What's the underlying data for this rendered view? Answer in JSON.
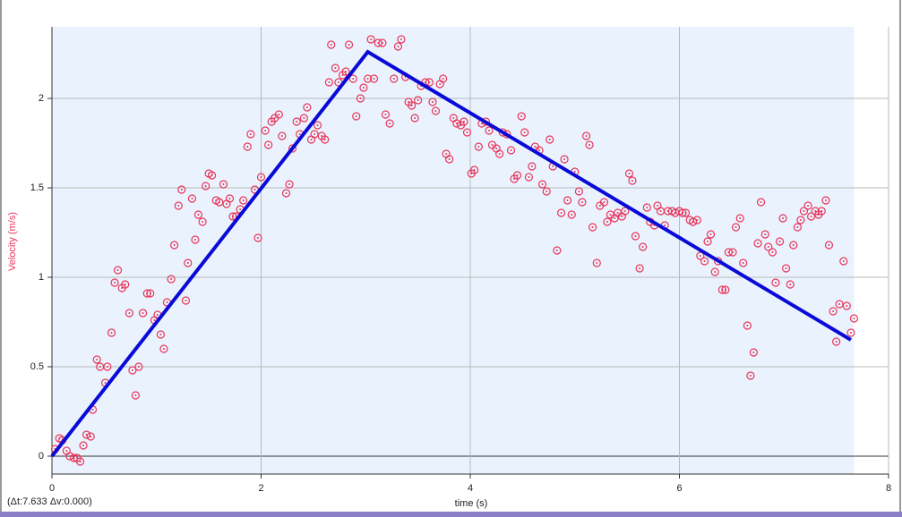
{
  "chart_data": {
    "type": "scatter",
    "x_label": "time (s)",
    "y_label": "Velocity (m/s)",
    "annotation": "(Δt:7.633 Δv:0.000)",
    "xlim": [
      0,
      8
    ],
    "ylim": [
      -0.1,
      2.4
    ],
    "xticks": [
      0,
      2,
      4,
      6,
      8
    ],
    "yticks": [
      0,
      0.5,
      1,
      1.5,
      2
    ],
    "grid": true,
    "points": {
      "color": "#e8345a",
      "x": [
        0.03,
        0.07,
        0.1,
        0.14,
        0.17,
        0.21,
        0.24,
        0.27,
        0.3,
        0.33,
        0.37,
        0.39,
        0.43,
        0.46,
        0.51,
        0.53,
        0.57,
        0.6,
        0.63,
        0.67,
        0.7,
        0.74,
        0.77,
        0.8,
        0.83,
        0.87,
        0.91,
        0.94,
        0.98,
        1.01,
        1.04,
        1.07,
        1.1,
        1.14,
        1.17,
        1.21,
        1.24,
        1.28,
        1.3,
        1.34,
        1.37,
        1.4,
        1.44,
        1.47,
        1.5,
        1.53,
        1.57,
        1.6,
        1.64,
        1.67,
        1.7,
        1.73,
        1.76,
        1.8,
        1.83,
        1.87,
        1.9,
        1.94,
        1.97,
        2.0,
        2.04,
        2.07,
        2.1,
        2.13,
        2.17,
        2.2,
        2.24,
        2.27,
        2.3,
        2.34,
        2.37,
        2.41,
        2.44,
        2.48,
        2.51,
        2.54,
        2.58,
        2.61,
        2.65,
        2.67,
        2.71,
        2.74,
        2.78,
        2.81,
        2.84,
        2.88,
        2.91,
        2.95,
        2.98,
        3.02,
        3.05,
        3.08,
        3.12,
        3.16,
        3.19,
        3.23,
        3.27,
        3.31,
        3.34,
        3.38,
        3.41,
        3.44,
        3.47,
        3.5,
        3.53,
        3.57,
        3.61,
        3.64,
        3.67,
        3.71,
        3.74,
        3.77,
        3.8,
        3.84,
        3.87,
        3.91,
        3.94,
        3.97,
        4.01,
        4.04,
        4.08,
        4.11,
        4.15,
        4.18,
        4.21,
        4.25,
        4.28,
        4.31,
        4.35,
        4.39,
        4.42,
        4.45,
        4.49,
        4.52,
        4.56,
        4.59,
        4.62,
        4.66,
        4.69,
        4.73,
        4.76,
        4.79,
        4.83,
        4.87,
        4.9,
        4.93,
        4.97,
        5.0,
        5.04,
        5.07,
        5.11,
        5.14,
        5.17,
        5.21,
        5.24,
        5.28,
        5.31,
        5.34,
        5.38,
        5.41,
        5.45,
        5.48,
        5.52,
        5.55,
        5.58,
        5.62,
        5.65,
        5.69,
        5.72,
        5.76,
        5.79,
        5.82,
        5.86,
        5.89,
        5.93,
        5.96,
        6.0,
        6.03,
        6.06,
        6.1,
        6.13,
        6.17,
        6.2,
        6.24,
        6.27,
        6.3,
        6.34,
        6.37,
        6.41,
        6.44,
        6.47,
        6.51,
        6.54,
        6.58,
        6.61,
        6.65,
        6.68,
        6.71,
        6.75,
        6.78,
        6.82,
        6.85,
        6.89,
        6.92,
        6.96,
        6.99,
        7.02,
        7.06,
        7.09,
        7.13,
        7.16,
        7.19,
        7.23,
        7.26,
        7.3,
        7.33,
        7.36,
        7.4,
        7.43,
        7.47,
        7.5,
        7.53,
        7.57,
        7.6,
        7.64,
        7.67
      ],
      "values": [
        0.04,
        0.1,
        0.09,
        0.03,
        0.0,
        -0.01,
        -0.01,
        -0.03,
        0.06,
        0.12,
        0.11,
        0.26,
        0.54,
        0.5,
        0.41,
        0.5,
        0.69,
        0.97,
        1.04,
        0.94,
        0.96,
        0.8,
        0.48,
        0.34,
        0.5,
        0.8,
        0.91,
        0.91,
        0.76,
        0.79,
        0.68,
        0.6,
        0.86,
        0.99,
        1.18,
        1.4,
        1.49,
        0.87,
        1.08,
        1.44,
        1.21,
        1.35,
        1.31,
        1.51,
        1.58,
        1.57,
        1.43,
        1.42,
        1.52,
        1.41,
        1.44,
        1.34,
        1.34,
        1.38,
        1.43,
        1.73,
        1.8,
        1.49,
        1.22,
        1.56,
        1.82,
        1.74,
        1.87,
        1.89,
        1.91,
        1.79,
        1.47,
        1.52,
        1.72,
        1.87,
        1.8,
        1.89,
        1.95,
        1.77,
        1.8,
        1.85,
        1.79,
        1.77,
        2.09,
        2.3,
        2.17,
        2.09,
        2.13,
        2.15,
        2.3,
        2.11,
        1.9,
        2.0,
        2.06,
        2.11,
        2.33,
        2.11,
        2.31,
        2.31,
        1.91,
        1.86,
        2.11,
        2.29,
        2.33,
        2.12,
        1.98,
        1.96,
        1.89,
        1.99,
        2.07,
        2.09,
        2.09,
        1.98,
        1.93,
        2.08,
        2.11,
        1.69,
        1.66,
        1.89,
        1.86,
        1.85,
        1.87,
        1.81,
        1.58,
        1.6,
        1.73,
        1.86,
        1.87,
        1.82,
        1.74,
        1.72,
        1.69,
        1.81,
        1.8,
        1.71,
        1.55,
        1.57,
        1.9,
        1.81,
        1.56,
        1.62,
        1.73,
        1.71,
        1.52,
        1.48,
        1.77,
        1.62,
        1.15,
        1.36,
        1.66,
        1.43,
        1.35,
        1.59,
        1.48,
        1.42,
        1.79,
        1.74,
        1.28,
        1.08,
        1.4,
        1.42,
        1.31,
        1.35,
        1.33,
        1.36,
        1.34,
        1.37,
        1.58,
        1.54,
        1.23,
        1.05,
        1.17,
        1.39,
        1.31,
        1.29,
        1.4,
        1.37,
        1.29,
        1.37,
        1.37,
        1.36,
        1.37,
        1.36,
        1.36,
        1.32,
        1.31,
        1.32,
        1.12,
        1.09,
        1.2,
        1.24,
        1.03,
        1.09,
        0.93,
        0.93,
        1.14,
        1.14,
        1.28,
        1.33,
        1.08,
        0.73,
        0.45,
        0.58,
        1.19,
        1.42,
        1.24,
        1.17,
        1.14,
        0.97,
        1.2,
        1.33,
        1.05,
        0.96,
        1.18,
        1.28,
        1.32,
        1.37,
        1.4,
        1.34,
        1.37,
        1.35,
        1.37,
        1.43,
        1.18,
        0.81,
        0.64,
        0.85,
        1.09,
        0.84,
        0.69,
        0.77
      ]
    },
    "fit_line": {
      "color": "#0a0ad8",
      "x": [
        0,
        3.02,
        7.64
      ],
      "values": [
        0,
        2.26,
        0.65
      ]
    }
  }
}
